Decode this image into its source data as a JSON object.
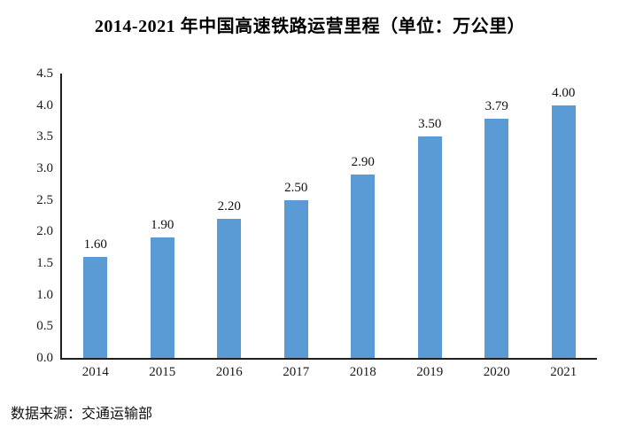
{
  "page_title": "2014-2021 年中国高速铁路运营里程（单位：万公里）",
  "source_note": "数据来源：交通运输部",
  "colors": {
    "bar_fill": "#5B9BD5",
    "axis_line": "#1f1f1f",
    "background": "#ffffff",
    "text": "#000000"
  },
  "chart_data": {
    "type": "bar",
    "title": "2014-2021 年中国高速铁路运营里程（单位：万公里）",
    "categories": [
      "2014",
      "2015",
      "2016",
      "2017",
      "2018",
      "2019",
      "2020",
      "2021"
    ],
    "values": [
      1.6,
      1.9,
      2.2,
      2.5,
      2.9,
      3.5,
      3.79,
      4.0
    ],
    "value_labels": [
      "1.60",
      "1.90",
      "2.20",
      "2.50",
      "2.90",
      "3.50",
      "3.79",
      "4.00"
    ],
    "xlabel": "",
    "ylabel": "",
    "unit": "万公里",
    "ylim": [
      0,
      4.5
    ],
    "ytick_step": 0.5,
    "yticks": [
      "4.5",
      "4.0",
      "3.5",
      "3.0",
      "2.5",
      "2.0",
      "1.5",
      "1.0",
      "0.5",
      "0.0"
    ],
    "grid": false,
    "legend": false,
    "bar_color": "#5B9BD5"
  }
}
